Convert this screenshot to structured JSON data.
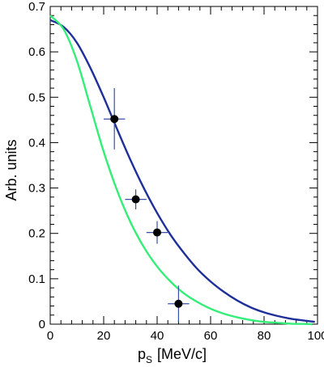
{
  "chart_data": {
    "type": "line",
    "xlabel": "p",
    "xlabel_subscript": "S",
    "xlabel_unit": "[MeV/c]",
    "ylabel": "Arb. units",
    "xlim": [
      0,
      100
    ],
    "ylim": [
      0,
      0.7
    ],
    "x_ticks": [
      0,
      20,
      40,
      60,
      80,
      100
    ],
    "x_tick_labels": [
      "0",
      "20",
      "40",
      "60",
      "80",
      "100"
    ],
    "y_ticks": [
      0,
      0.1,
      0.2,
      0.3,
      0.4,
      0.5,
      0.6,
      0.7
    ],
    "y_tick_labels": [
      "0",
      "0.1",
      "0.2",
      "0.3",
      "0.4",
      "0.5",
      "0.6",
      "0.7"
    ],
    "grid": false,
    "series": [
      {
        "kind": "curve",
        "color": "#1f2f9a",
        "x": [
          0,
          5,
          10,
          15,
          20,
          25,
          30,
          35,
          40,
          45,
          50,
          55,
          60,
          65,
          70,
          75,
          80,
          85,
          90,
          95,
          99
        ],
        "y": [
          0.67,
          0.655,
          0.62,
          0.565,
          0.5,
          0.43,
          0.362,
          0.3,
          0.245,
          0.197,
          0.157,
          0.122,
          0.094,
          0.071,
          0.052,
          0.037,
          0.026,
          0.018,
          0.012,
          0.008,
          0.005
        ]
      },
      {
        "kind": "curve",
        "color": "#33ee77",
        "x": [
          0,
          5,
          10,
          15,
          20,
          25,
          30,
          35,
          40,
          45,
          50,
          55,
          60,
          65,
          70,
          75,
          80,
          85,
          90,
          95,
          98
        ],
        "y": [
          0.68,
          0.65,
          0.58,
          0.48,
          0.38,
          0.295,
          0.225,
          0.17,
          0.127,
          0.094,
          0.068,
          0.049,
          0.034,
          0.023,
          0.015,
          0.009,
          0.005,
          0.003,
          0.001,
          0.0005,
          0.0
        ]
      },
      {
        "kind": "points",
        "marker_color": "#000000",
        "error_color": "#3a4fa8",
        "points": [
          {
            "x": 24,
            "y": 0.452,
            "xerr": 4,
            "yerr_low": 0.067,
            "yerr_high": 0.068
          },
          {
            "x": 32,
            "y": 0.275,
            "xerr": 4,
            "yerr_low": 0.022,
            "yerr_high": 0.022
          },
          {
            "x": 40,
            "y": 0.202,
            "xerr": 4,
            "yerr_low": 0.025,
            "yerr_high": 0.025
          },
          {
            "x": 48,
            "y": 0.045,
            "xerr": 4,
            "yerr_low": 0.04,
            "yerr_high": 0.04
          }
        ]
      }
    ]
  }
}
